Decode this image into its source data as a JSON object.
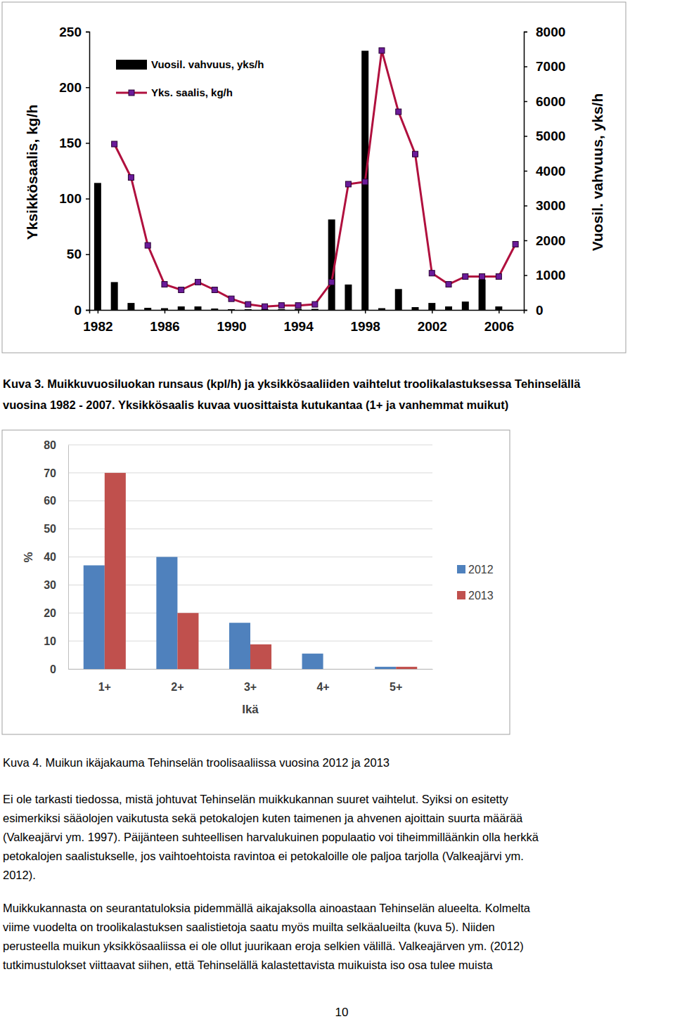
{
  "chart_data": [
    {
      "type": "bar",
      "x": [
        1982,
        1983,
        1984,
        1985,
        1986,
        1987,
        1988,
        1989,
        1990,
        1991,
        1992,
        1993,
        1994,
        1995,
        1996,
        1997,
        1998,
        1999,
        2000,
        2001,
        2002,
        2003,
        2004,
        2005,
        2006,
        2007
      ],
      "xlim": [
        1981.5,
        2007.5
      ],
      "xticks": [
        1982,
        1986,
        1990,
        1994,
        1998,
        2002,
        2006
      ],
      "ylabel": "Yksikkösaalis, kg/h",
      "ylim": [
        0,
        250
      ],
      "yticks": [
        0,
        50,
        100,
        150,
        200,
        250
      ],
      "y2label": "Vuosil. vahvuus, yks/h",
      "y2lim": [
        0,
        8000
      ],
      "y2ticks": [
        0,
        1000,
        2000,
        3000,
        4000,
        5000,
        6000,
        7000,
        8000
      ],
      "grid": false,
      "legend": "upper left",
      "series": [
        {
          "name": "Vuosil. vahvuus, yks/h",
          "type": "bar",
          "axis": "y2",
          "color": "#000000",
          "values": [
            3650,
            800,
            200,
            60,
            50,
            100,
            100,
            40,
            20,
            20,
            20,
            20,
            30,
            30,
            2600,
            730,
            7450,
            50,
            600,
            80,
            200,
            100,
            240,
            870,
            100,
            0
          ]
        },
        {
          "name": "Yks. saalis, kg/h",
          "type": "line",
          "color": "#b0103e",
          "marker": "square",
          "values": [
            null,
            149,
            119,
            58,
            23,
            18,
            25,
            18,
            10,
            5,
            3,
            4,
            4,
            5,
            25,
            113,
            115,
            233,
            178,
            140,
            33,
            23,
            30,
            30,
            30,
            59
          ]
        }
      ]
    },
    {
      "type": "bar",
      "categories": [
        "1+",
        "2+",
        "3+",
        "4+",
        "5+"
      ],
      "xlabel": "Ikä",
      "ylabel": "%",
      "ylim": [
        0,
        80
      ],
      "yticks": [
        0,
        10,
        20,
        30,
        40,
        50,
        60,
        70,
        80
      ],
      "grid": true,
      "legend": "right",
      "series": [
        {
          "name": "2012",
          "color": "#4f81bd",
          "values": [
            37,
            40,
            16.5,
            5.5,
            0.8
          ]
        },
        {
          "name": "2013",
          "color": "#c0504d",
          "values": [
            70,
            20,
            8.8,
            0,
            0.8
          ]
        }
      ]
    }
  ],
  "document": {
    "captions": [
      {
        "lines": [
          "Kuva 3. Muikkuvuosiluokan runsaus (kpl/h) ja yksikkösaaliiden vaihtelut troolikalastuksessa Tehinselällä",
          "vuosina 1982 - 2007. Yksikkösaalis kuvaa vuosittaista kutukantaa (1+ ja vanhemmat muikut)"
        ]
      },
      {
        "lines": [
          "Kuva 4. Muikun ikäjakauma Tehinselän troolisaaliissa vuosina 2012 ja 2013"
        ]
      }
    ],
    "paragraphs": [
      [
        "Ei ole tarkasti tiedossa, mistä johtuvat Tehinselän muikkukannan suuret vaihtelut. Syiksi on esitetty",
        "esimerkiksi sääolojen vaikutusta sekä petokalojen kuten taimenen ja ahvenen ajoittain suurta määrää",
        "(Valkeajärvi ym. 1997). Päijänteen suhteellisen harvalukuinen populaatio voi tiheimmilläänkin olla herkkä",
        "petokalojen saalistukselle, jos vaihtoehtoista ravintoa ei petokaloille ole paljoa tarjolla (Valkeajärvi ym.",
        "2012)."
      ],
      [
        "Muikkukannasta on seurantatuloksia pidemmällä aikajaksolla ainoastaan Tehinselän alueelta. Kolmelta",
        "viime vuodelta on troolikalastuksen saalistietoja saatu myös muilta selkäalueilta (kuva 5). Niiden",
        "perusteella muikun yksikkösaaliissa ei ole ollut juurikaan eroja selkien välillä. Valkeajärven ym. (2012)",
        "tutkimustulokset viittaavat siihen, että Tehinselällä kalastettavista muikuista iso osa tulee muista"
      ]
    ],
    "page_number": 10
  }
}
